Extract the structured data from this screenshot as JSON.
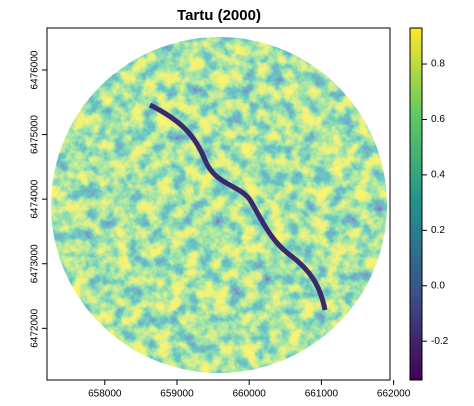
{
  "chart_data": {
    "type": "raster",
    "title": "Tartu (2000)",
    "xlim": [
      657200,
      661950
    ],
    "xticks": [
      658000,
      659000,
      660000,
      661000,
      662000
    ],
    "ylim": [
      6471200,
      6476650
    ],
    "yticks": [
      6472000,
      6473000,
      6474000,
      6475000,
      6476000
    ],
    "colorbar": {
      "lim": [
        -0.34,
        0.93
      ],
      "ticks": [
        -0.2,
        {
          "value": 0,
          "label": "0.0"
        },
        0.2,
        0.4,
        0.6,
        0.8
      ],
      "colors": [
        "#440154",
        "#3b528b",
        "#21918c",
        "#5ec962",
        "#fde725"
      ]
    }
  }
}
